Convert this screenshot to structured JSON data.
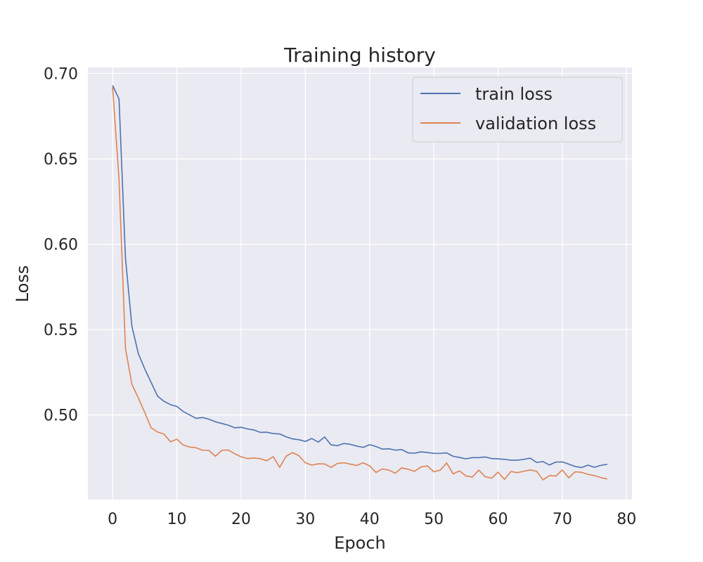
{
  "chart_data": {
    "type": "line",
    "title": "Training history",
    "xlabel": "Epoch",
    "ylabel": "Loss",
    "xlim": [
      -3.85,
      80.85
    ],
    "ylim": [
      0.4505,
      0.7035
    ],
    "xticks": [
      0,
      10,
      20,
      30,
      40,
      50,
      60,
      70,
      80
    ],
    "yticks": [
      0.5,
      0.55,
      0.6,
      0.65,
      0.7
    ],
    "xtick_labels": [
      "0",
      "10",
      "20",
      "30",
      "40",
      "50",
      "60",
      "70",
      "80"
    ],
    "ytick_labels": [
      "0.50",
      "0.55",
      "0.60",
      "0.65",
      "0.70"
    ],
    "grid": true,
    "legend_position": "top-right",
    "x": [
      0,
      1,
      2,
      3,
      4,
      5,
      6,
      7,
      8,
      9,
      10,
      11,
      12,
      13,
      14,
      15,
      16,
      17,
      18,
      19,
      20,
      21,
      22,
      23,
      24,
      25,
      26,
      27,
      28,
      29,
      30,
      31,
      32,
      33,
      34,
      35,
      36,
      37,
      38,
      39,
      40,
      41,
      42,
      43,
      44,
      45,
      46,
      47,
      48,
      49,
      50,
      51,
      52,
      53,
      54,
      55,
      56,
      57,
      58,
      59,
      60,
      61,
      62,
      63,
      64,
      65,
      66,
      67,
      68,
      69,
      70,
      71,
      72,
      73,
      74,
      75,
      76,
      77
    ],
    "series": [
      {
        "name": "train loss",
        "color": "#4c72b0",
        "values": [
          0.693,
          0.685,
          0.592,
          0.552,
          0.536,
          0.527,
          0.519,
          0.511,
          0.508,
          0.506,
          0.505,
          0.502,
          0.5,
          0.498,
          0.4985,
          0.4975,
          0.496,
          0.495,
          0.494,
          0.4925,
          0.4928,
          0.4918,
          0.4912,
          0.4898,
          0.4899,
          0.4891,
          0.4889,
          0.4872,
          0.486,
          0.4855,
          0.4845,
          0.4862,
          0.4841,
          0.4871,
          0.4825,
          0.482,
          0.4833,
          0.4828,
          0.4818,
          0.481,
          0.4826,
          0.4815,
          0.48,
          0.4802,
          0.4794,
          0.4797,
          0.4778,
          0.4776,
          0.4784,
          0.478,
          0.4775,
          0.4775,
          0.4778,
          0.4758,
          0.4751,
          0.4743,
          0.475,
          0.475,
          0.4754,
          0.4745,
          0.4743,
          0.474,
          0.4735,
          0.4735,
          0.474,
          0.4747,
          0.4722,
          0.4727,
          0.4707,
          0.4724,
          0.4725,
          0.4712,
          0.4698,
          0.4692,
          0.4706,
          0.4693,
          0.4705,
          0.4711
        ]
      },
      {
        "name": "validation loss",
        "color": "#dd8452",
        "values": [
          0.692,
          0.638,
          0.539,
          0.518,
          0.51,
          0.5015,
          0.4925,
          0.49,
          0.4888,
          0.4843,
          0.4858,
          0.4824,
          0.4812,
          0.4808,
          0.4793,
          0.4792,
          0.4758,
          0.4793,
          0.4795,
          0.4773,
          0.4755,
          0.4745,
          0.4748,
          0.4744,
          0.4732,
          0.4756,
          0.4693,
          0.4758,
          0.478,
          0.4761,
          0.472,
          0.4706,
          0.4714,
          0.4713,
          0.4693,
          0.4716,
          0.472,
          0.4712,
          0.4704,
          0.472,
          0.4702,
          0.4663,
          0.4684,
          0.4677,
          0.4659,
          0.469,
          0.4682,
          0.467,
          0.4695,
          0.4702,
          0.4667,
          0.4677,
          0.4719,
          0.4655,
          0.4672,
          0.4643,
          0.4636,
          0.4677,
          0.4638,
          0.463,
          0.4665,
          0.4623,
          0.4669,
          0.4662,
          0.467,
          0.4678,
          0.467,
          0.462,
          0.4645,
          0.4642,
          0.4678,
          0.4632,
          0.4667,
          0.4664,
          0.4652,
          0.4645,
          0.4633,
          0.4625
        ]
      }
    ]
  }
}
